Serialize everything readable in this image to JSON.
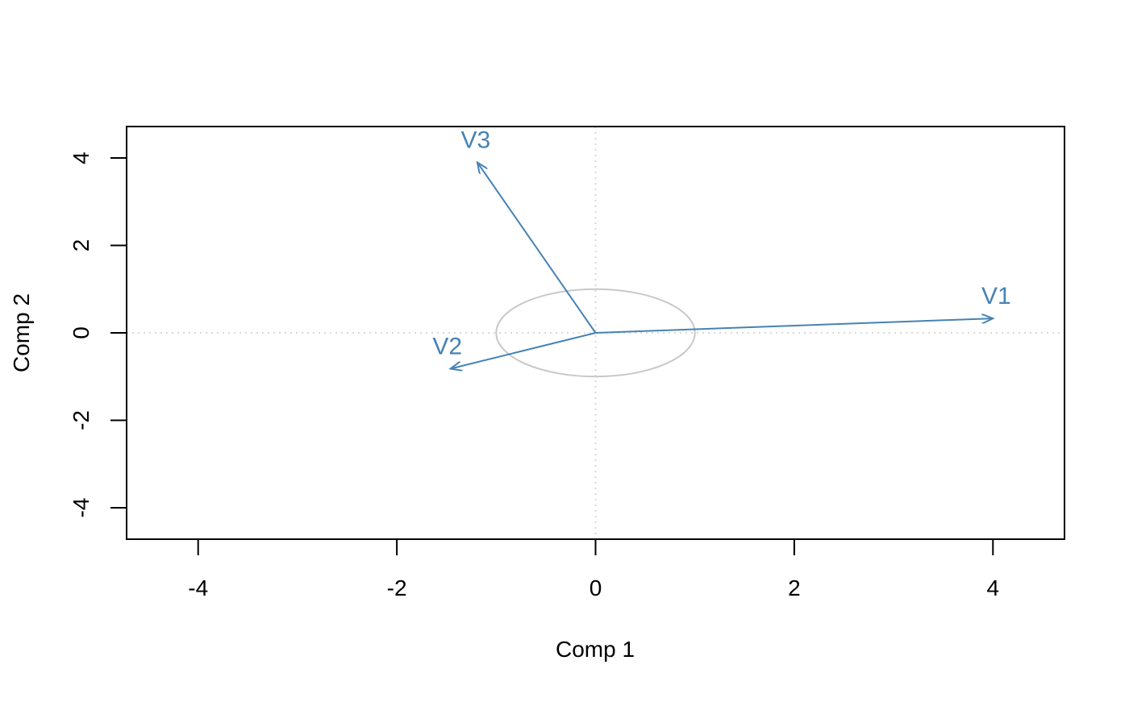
{
  "chart_data": {
    "type": "scatter",
    "title": "",
    "xlabel": "Comp 1",
    "ylabel": "Comp 2",
    "xlim": [
      -4.72,
      4.72
    ],
    "ylim": [
      -4.72,
      4.72
    ],
    "x_ticks": [
      -4,
      -2,
      0,
      2,
      4
    ],
    "y_ticks": [
      -4,
      -2,
      0,
      2,
      4
    ],
    "x_tick_labels": [
      "-4",
      "-2",
      "0",
      "2",
      "4"
    ],
    "y_tick_labels": [
      "-4",
      "-2",
      "0",
      "2",
      "4"
    ],
    "reference_lines": {
      "x": 0,
      "y": 0,
      "style": "dotted"
    },
    "unit_circle": {
      "center": [
        0,
        0
      ],
      "radius": 1
    },
    "series": [
      {
        "name": "",
        "vectors": [
          {
            "label": "V1",
            "x": 4.0,
            "y": 0.33
          },
          {
            "label": "V2",
            "x": -1.46,
            "y": -0.82
          },
          {
            "label": "V3",
            "x": -1.19,
            "y": 3.9
          }
        ]
      }
    ],
    "colors": {
      "vector": "#4682B4",
      "circle": "#C8C8C8",
      "reference": "#D9D9D9",
      "axis": "#000000"
    },
    "grid": false,
    "legend": "none"
  }
}
